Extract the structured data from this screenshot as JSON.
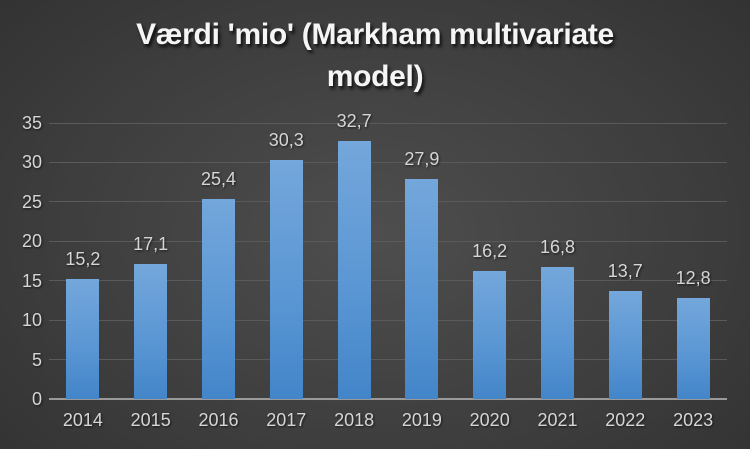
{
  "title_lines": [
    "Værdi 'mio' (Markham multivariate",
    "model)"
  ],
  "chart_data": {
    "type": "bar",
    "title": "Værdi 'mio' (Markham multivariate model)",
    "categories": [
      "2014",
      "2015",
      "2016",
      "2017",
      "2018",
      "2019",
      "2020",
      "2021",
      "2022",
      "2023"
    ],
    "values": [
      15.2,
      17.1,
      25.4,
      30.3,
      32.7,
      27.9,
      16.2,
      16.8,
      13.7,
      12.8
    ],
    "value_labels": [
      "15,2",
      "17,1",
      "25,4",
      "30,3",
      "32,7",
      "27,9",
      "16,2",
      "16,8",
      "13,7",
      "12,8"
    ],
    "xlabel": "",
    "ylabel": "",
    "ylim": [
      0,
      35
    ],
    "yticks": [
      0,
      5,
      10,
      15,
      20,
      25,
      30,
      35
    ],
    "grid": true,
    "legend": "none",
    "colors": {
      "bar_top": "#74a7db",
      "bar_bottom": "#4385c9",
      "gridline": "#5a5a5a",
      "axis_line": "#9a9a9a",
      "label_text": "#d6d6d6",
      "title_text": "#f5f5f5",
      "background_center": "#4e4e4e",
      "background_edge": "#242424"
    }
  }
}
